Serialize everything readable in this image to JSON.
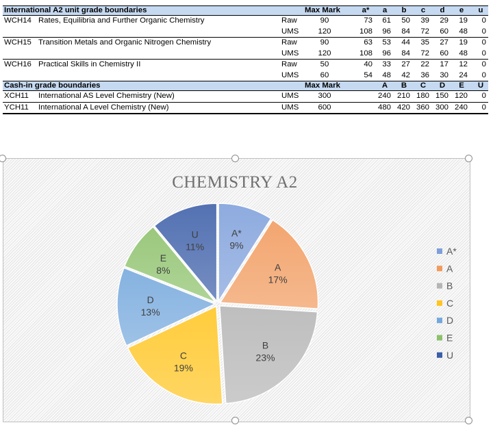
{
  "table": {
    "a2_header": {
      "title": "International A2 unit grade boundaries",
      "max_mark": "Max Mark",
      "grades": [
        "a*",
        "a",
        "b",
        "c",
        "d",
        "e",
        "u"
      ]
    },
    "units": [
      {
        "code": "WCH14",
        "name": "Rates, Equilibria and Further Organic Chemistry",
        "rows": [
          {
            "type": "Raw",
            "max": "90",
            "grades": [
              "73",
              "61",
              "50",
              "39",
              "29",
              "19",
              "0"
            ]
          },
          {
            "type": "UMS",
            "max": "120",
            "grades": [
              "108",
              "96",
              "84",
              "72",
              "60",
              "48",
              "0"
            ]
          }
        ]
      },
      {
        "code": "WCH15",
        "name": "Transition Metals and Organic Nitrogen Chemistry",
        "rows": [
          {
            "type": "Raw",
            "max": "90",
            "grades": [
              "63",
              "53",
              "44",
              "35",
              "27",
              "19",
              "0"
            ]
          },
          {
            "type": "UMS",
            "max": "120",
            "grades": [
              "108",
              "96",
              "84",
              "72",
              "60",
              "48",
              "0"
            ]
          }
        ]
      },
      {
        "code": "WCH16",
        "name": "Practical Skills in Chemistry II",
        "rows": [
          {
            "type": "Raw",
            "max": "50",
            "grades": [
              "40",
              "33",
              "27",
              "22",
              "17",
              "12",
              "0"
            ]
          },
          {
            "type": "UMS",
            "max": "60",
            "grades": [
              "54",
              "48",
              "42",
              "36",
              "30",
              "24",
              "0"
            ]
          }
        ]
      }
    ],
    "cashin_header": {
      "title": "Cash-in grade boundaries",
      "max_mark": "Max Mark",
      "grades": [
        "A",
        "B",
        "C",
        "D",
        "E",
        "U"
      ]
    },
    "cashin": [
      {
        "code": "XCH11",
        "name": "International AS Level Chemistry (New)",
        "type": "UMS",
        "max": "300",
        "grades": [
          "240",
          "210",
          "180",
          "150",
          "120",
          "0"
        ]
      },
      {
        "code": "YCH11",
        "name": "International A Level Chemistry (New)",
        "type": "UMS",
        "max": "600",
        "grades": [
          "480",
          "420",
          "360",
          "300",
          "240",
          "0"
        ]
      }
    ]
  },
  "chart_data": {
    "type": "pie",
    "title": "CHEMISTRY A2",
    "legend_position": "right",
    "slices": [
      {
        "label": "A*",
        "value": 9,
        "display": "9%",
        "color": "#7f9fdb"
      },
      {
        "label": "A",
        "value": 17,
        "display": "17%",
        "color": "#f19a5c"
      },
      {
        "label": "B",
        "value": 23,
        "display": "23%",
        "color": "#b5b5b5"
      },
      {
        "label": "C",
        "value": 19,
        "display": "19%",
        "color": "#ffc520"
      },
      {
        "label": "D",
        "value": 13,
        "display": "13%",
        "color": "#74a8dc"
      },
      {
        "label": "E",
        "value": 8,
        "display": "8%",
        "color": "#8cc16a"
      },
      {
        "label": "U",
        "value": 11,
        "display": "11%",
        "color": "#3b5ea8"
      }
    ]
  }
}
